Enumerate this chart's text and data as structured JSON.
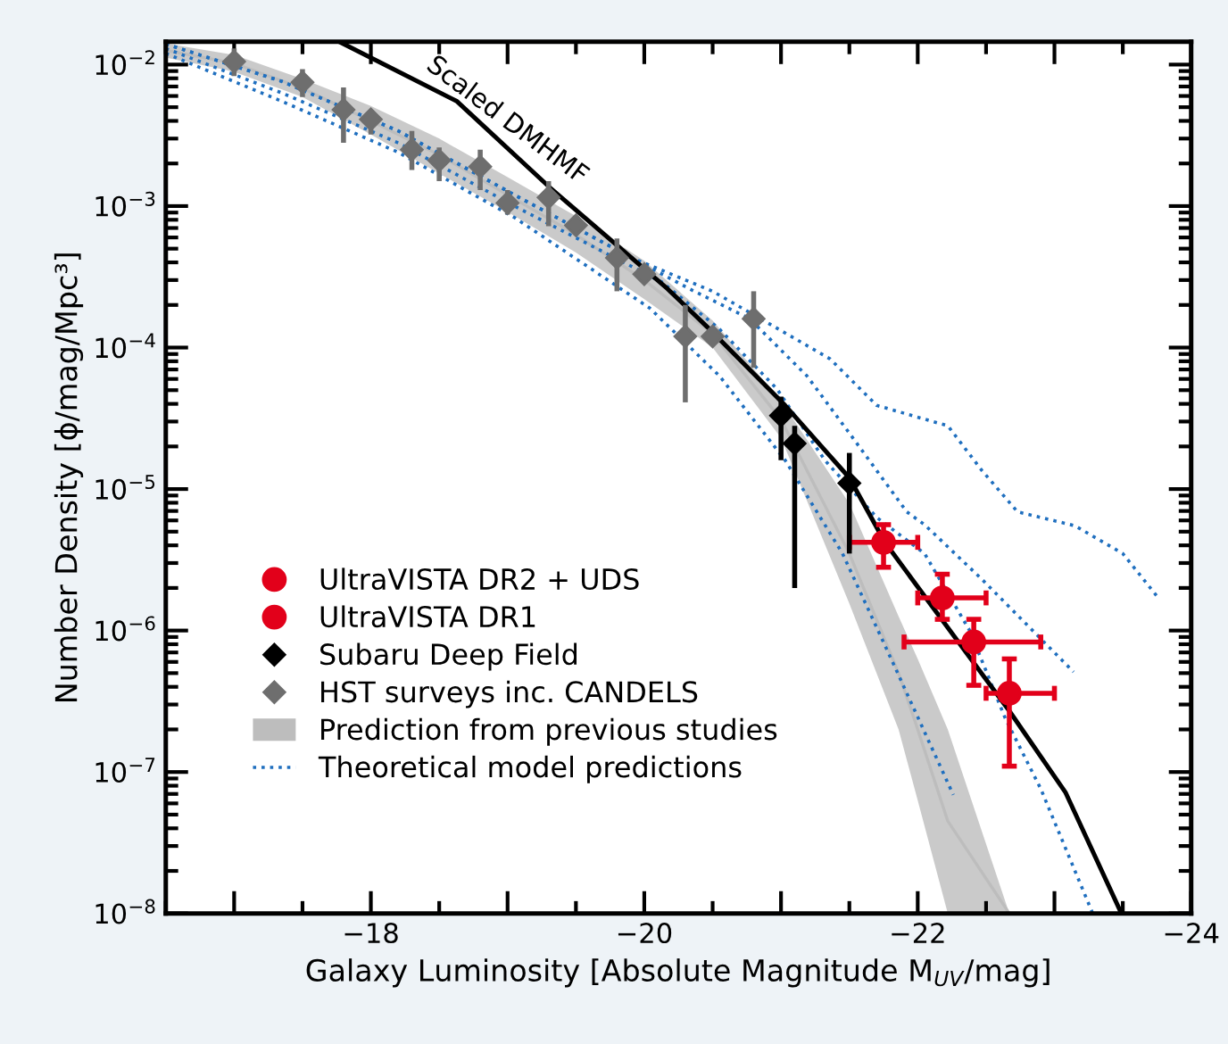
{
  "chart_data": {
    "type": "scatter",
    "xlabel": "Galaxy Luminosity [Absolute Magnitude M$_{UV}$/mag]",
    "ylabel": "Number Density [ϕ/mag/Mpc³]",
    "log": "y",
    "legend": "bottom left",
    "grid": false,
    "xlim": [
      -16.5,
      -24
    ],
    "xticks": [
      {
        "value": -17,
        "label": null
      },
      {
        "value": -18,
        "label": "−18"
      },
      {
        "value": -19,
        "label": null
      },
      {
        "value": -20,
        "label": "−20"
      },
      {
        "value": -21,
        "label": null
      },
      {
        "value": -22,
        "label": "−22"
      },
      {
        "value": -23,
        "label": null
      },
      {
        "value": -24,
        "label": "−24"
      }
    ],
    "ylim": [
      1e-08,
      0.0145
    ],
    "yticks": [
      {
        "value": 1e-08,
        "label": "10$^{−8}$"
      },
      {
        "value": 1e-07,
        "label": "10$^{−7}$"
      },
      {
        "value": 1e-06,
        "label": "10$^{−6}$"
      },
      {
        "value": 1e-05,
        "label": "10$^{−5}$"
      },
      {
        "value": 0.0001,
        "label": "10$^{−4}$"
      },
      {
        "value": 0.001,
        "label": "10$^{−3}$"
      },
      {
        "value": 0.01,
        "label": "10$^{−2}$"
      }
    ],
    "annotations": [
      {
        "text": "Scaled DMHMF",
        "x": -18.3,
        "y": 0.0075
      }
    ],
    "series": [
      {
        "name": "UltraVISTA DR2 + UDS",
        "marker": "circle",
        "color": "#e2001a",
        "x": [
          -21.75,
          -22.18,
          -22.67
        ],
        "values": [
          4.2e-06,
          1.7e-06,
          3.6e-07
        ],
        "errors": [
          [
            2.8e-06,
            5.6e-06
          ],
          [
            1.2e-06,
            2.5e-06
          ],
          [
            1.1e-07,
            6.3e-07
          ]
        ],
        "xerrors": [
          [
            -22.0,
            -21.5
          ],
          [
            -22.5,
            -22.0
          ],
          [
            -23.0,
            -22.5
          ]
        ]
      },
      {
        "name": "UltraVISTA DR1",
        "marker": "circle",
        "color": "#e2001a",
        "x": [
          -22.41
        ],
        "values": [
          8.3e-07
        ],
        "errors": [
          [
            4.1e-07,
            1.2e-06
          ]
        ],
        "xerrors": [
          [
            -22.9,
            -21.9
          ]
        ]
      },
      {
        "name": "Subaru Deep Field",
        "marker": "diamond",
        "color": "#000000",
        "x": [
          -21.0,
          -21.1,
          -21.5
        ],
        "values": [
          3.3e-05,
          2.1e-05,
          1.1e-05
        ],
        "errors": [
          [
            1.6e-05,
            4.5e-05
          ],
          [
            2e-06,
            2.8e-05
          ],
          [
            3.5e-06,
            1.8e-05
          ]
        ]
      },
      {
        "name": "HST surveys inc. CANDELS",
        "marker": "diamond",
        "color": "#6e6e6e",
        "x": [
          -17.0,
          -17.5,
          -17.8,
          -18.0,
          -18.3,
          -18.5,
          -18.8,
          -19.0,
          -19.3,
          -19.5,
          -19.8,
          -20.0,
          -20.3,
          -20.5,
          -20.8
        ],
        "values": [
          0.0105,
          0.0075,
          0.0048,
          0.0041,
          0.0025,
          0.0021,
          0.0019,
          0.00105,
          0.00115,
          0.00073,
          0.00043,
          0.00033,
          0.00012,
          0.00012,
          0.00016
        ],
        "errors": [
          [
            0.0083,
            0.013
          ],
          [
            0.0059,
            0.0093
          ],
          [
            0.0028,
            0.0069
          ],
          [
            0.0032,
            0.0048
          ],
          [
            0.0018,
            0.0034
          ],
          [
            0.0015,
            0.0026
          ],
          [
            0.0013,
            0.0025
          ],
          [
            0.00087,
            0.0013
          ],
          [
            0.00072,
            0.0015
          ],
          null,
          [
            0.00025,
            0.00059
          ],
          null,
          [
            4.1e-05,
            0.0002
          ],
          null,
          [
            7.2e-05,
            0.00025
          ]
        ]
      },
      {
        "name": "Prediction from previous studies",
        "type": "line",
        "line_style": "solid",
        "color": "#bdbdbd",
        "x": [
          -16.5,
          -17,
          -17.5,
          -18,
          -18.5,
          -19,
          -19.5,
          -20,
          -20.5,
          -21,
          -21.5,
          -21.86,
          -22.0,
          -22.22,
          -22.67
        ],
        "values": [
          0.0126,
          0.0102,
          0.0068,
          0.004,
          0.0023,
          0.0012,
          0.00063,
          0.0003,
          0.000125,
          3.1e-05,
          3.5e-06,
          5e-07,
          2e-07,
          4.5e-08,
          1e-08
        ],
        "upper": [
          0.0141,
          0.0117,
          0.0079,
          0.0051,
          0.003,
          0.0016,
          0.00085,
          0.00041,
          0.000155,
          4.2e-05,
          7.9e-06,
          1.26e-06,
          6.3e-07,
          2e-07,
          1e-08
        ],
        "lower": [
          0.0112,
          0.0089,
          0.0059,
          0.0032,
          0.0017,
          0.00091,
          0.00047,
          0.00022,
          0.0001,
          2.3e-05,
          1.55e-06,
          2e-07,
          6.3e-08,
          1e-08,
          1e-08
        ]
      },
      {
        "name": "Theoretical model predictions",
        "type": "line",
        "line_style": "dotted",
        "color": "#1f6fbf",
        "x": [
          -16.5,
          -17.35,
          -18.2,
          -19.05,
          -19.91,
          -20.5,
          -20.9,
          -21.36,
          -21.7,
          -22.22,
          -22.47,
          -22.73,
          -23.15,
          -23.5,
          -23.76
        ],
        "values": [
          0.014,
          0.0076,
          0.0034,
          0.0012,
          0.00043,
          0.00025,
          0.00015,
          8.3e-05,
          3.9e-05,
          2.8e-05,
          1.35e-05,
          6.9e-06,
          5.5e-06,
          3.5e-06,
          1.7e-06
        ]
      },
      {
        "type": "line",
        "line_style": "dotted",
        "color": "#1f6fbf",
        "x": [
          -16.5,
          -17.35,
          -18.2,
          -19.05,
          -19.91,
          -20.33,
          -20.77,
          -21.19,
          -21.54,
          -21.92,
          -22.05,
          -22.47,
          -23.14
        ],
        "values": [
          0.014,
          0.0076,
          0.0034,
          0.0012,
          0.00043,
          0.00026,
          0.00016,
          6.3e-05,
          2.2e-05,
          6.9e-06,
          5.6e-06,
          2.3e-06,
          5.1e-07
        ]
      },
      {
        "type": "line",
        "line_style": "dotted",
        "color": "#1f6fbf",
        "x": [
          -16.5,
          -17.35,
          -18.2,
          -19.05,
          -20.13,
          -20.55,
          -20.97,
          -21.32,
          -21.7,
          -22.05,
          -22.38,
          -22.64,
          -22.9,
          -23.28
        ],
        "values": [
          0.013,
          0.0063,
          0.0028,
          0.001,
          0.00029,
          0.000135,
          5.1e-05,
          1.6e-05,
          6.3e-06,
          3.5e-06,
          1e-06,
          2.4e-07,
          7.6e-08,
          1e-08
        ]
      },
      {
        "type": "line",
        "line_style": "dotted",
        "color": "#1f6fbf",
        "x": [
          -16.5,
          -17.35,
          -18.2,
          -19.05,
          -20.04,
          -20.55,
          -21.03,
          -21.45,
          -21.83,
          -22.26
        ],
        "values": [
          0.012,
          0.0055,
          0.0024,
          0.00083,
          0.00019,
          6.3e-05,
          1.6e-05,
          3.5e-06,
          5.6e-07,
          6.9e-08
        ]
      },
      {
        "type": "line",
        "line_style": "solid",
        "color": "#000000",
        "x": [
          -17.77,
          -18.63,
          -19.31,
          -20.17,
          -20.46,
          -21.03,
          -21.5,
          -21.76,
          -22.67,
          -23.08,
          -23.49
        ],
        "values": [
          0.0145,
          0.0055,
          0.00135,
          0.00026,
          0.00014,
          3.9e-05,
          1.2e-05,
          4.2e-06,
          2.7e-07,
          7.2e-08,
          1e-08
        ]
      }
    ]
  }
}
